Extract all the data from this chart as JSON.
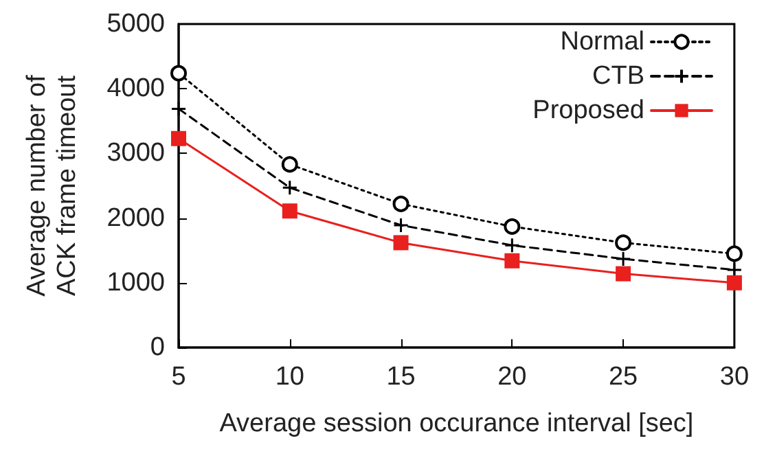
{
  "chart_data": {
    "type": "line",
    "xlabel": "Average session occurance interval [sec]",
    "ylabel": "Average number of\nACK frame timeout",
    "x": [
      5,
      10,
      15,
      20,
      25,
      30
    ],
    "xlim": [
      5,
      30
    ],
    "xticks": [
      5,
      10,
      15,
      20,
      25,
      30
    ],
    "ylim": [
      0,
      5000
    ],
    "yticks": [
      0,
      1000,
      2000,
      3000,
      4000,
      5000
    ],
    "grid": false,
    "legend": "top right",
    "series": [
      {
        "name": "Normal",
        "color": "#000000",
        "marker": "circle",
        "line_style": "dotted",
        "values": [
          4240,
          2830,
          2220,
          1870,
          1620,
          1450
        ]
      },
      {
        "name": "CTB",
        "color": "#000000",
        "marker": "cross",
        "line_style": "dashed",
        "values": [
          3690,
          2470,
          1890,
          1580,
          1370,
          1200
        ]
      },
      {
        "name": "Proposed",
        "color": "#e8201e",
        "marker": "square",
        "line_style": "solid",
        "values": [
          3230,
          2110,
          1620,
          1340,
          1140,
          1000
        ]
      }
    ]
  }
}
